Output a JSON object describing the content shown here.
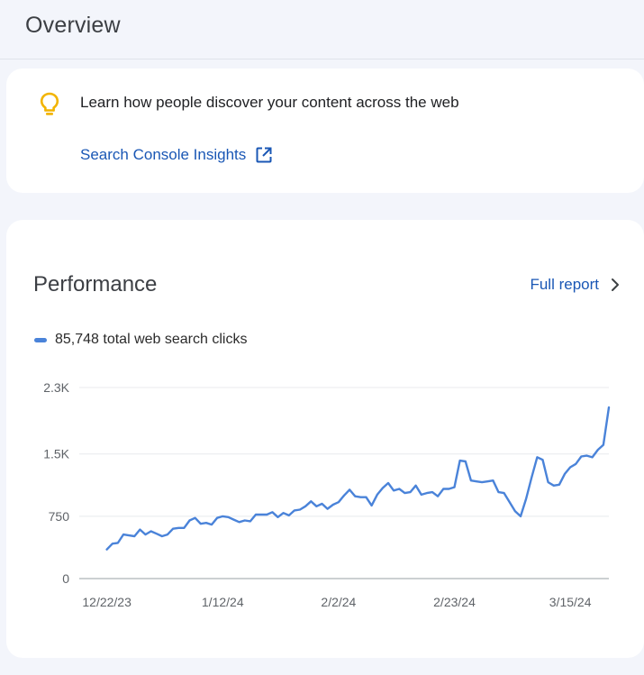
{
  "header": {
    "title": "Overview"
  },
  "insights": {
    "message": "Learn how people discover your content across the web",
    "link_label": "Search Console Insights",
    "icons": {
      "tip": "lightbulb-icon",
      "link": "open-in-new-icon"
    },
    "colors": {
      "bulb": "#f2b400",
      "link": "#1a57b5"
    }
  },
  "performance": {
    "title": "Performance",
    "full_report_label": "Full report",
    "legend_label": "85,748 total web search clicks",
    "colors": {
      "line": "#4a83d9"
    }
  },
  "chart_data": {
    "type": "line",
    "y_ticks": [
      {
        "value": 0,
        "label": "0"
      },
      {
        "value": 750,
        "label": "750"
      },
      {
        "value": 1500,
        "label": "1.5K"
      },
      {
        "value": 2300,
        "label": "2.3K"
      }
    ],
    "x_ticks": [
      {
        "day": 0,
        "label": "12/22/23"
      },
      {
        "day": 21,
        "label": "1/12/24"
      },
      {
        "day": 42,
        "label": "2/2/24"
      },
      {
        "day": 63,
        "label": "2/23/24"
      },
      {
        "day": 84,
        "label": "3/15/24"
      }
    ],
    "ylim": [
      0,
      2300
    ],
    "xlim": [
      -5,
      91
    ],
    "grid": true,
    "series": [
      {
        "name": "Clicks",
        "values": [
          350,
          420,
          430,
          530,
          520,
          510,
          590,
          530,
          570,
          540,
          510,
          530,
          600,
          610,
          610,
          700,
          730,
          660,
          670,
          650,
          730,
          750,
          740,
          710,
          680,
          700,
          690,
          770,
          770,
          770,
          800,
          740,
          790,
          760,
          820,
          830,
          870,
          930,
          870,
          900,
          840,
          890,
          920,
          1000,
          1070,
          990,
          980,
          980,
          880,
          1010,
          1090,
          1150,
          1060,
          1080,
          1030,
          1040,
          1120,
          1010,
          1030,
          1040,
          990,
          1080,
          1080,
          1100,
          1420,
          1410,
          1180,
          1170,
          1160,
          1170,
          1180,
          1040,
          1030,
          920,
          810,
          750,
          960,
          1220,
          1460,
          1430,
          1160,
          1120,
          1130,
          1260,
          1340,
          1380,
          1470,
          1480,
          1460,
          1550,
          1610,
          2060
        ]
      }
    ]
  }
}
